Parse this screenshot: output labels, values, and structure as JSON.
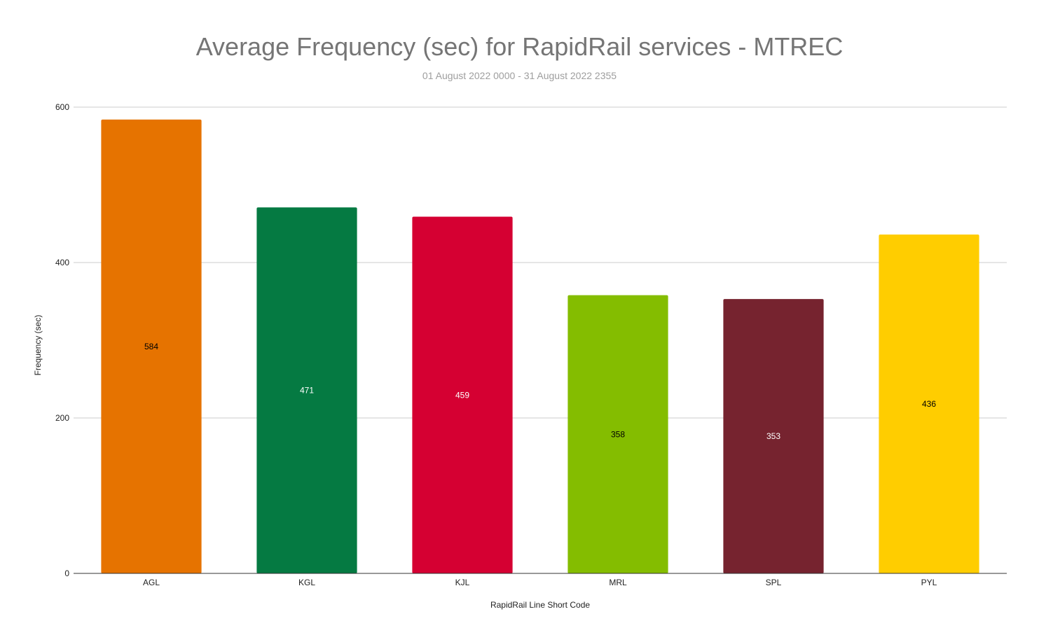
{
  "chart_data": {
    "type": "bar",
    "title": "Average Frequency (sec) for RapidRail services - MTREC",
    "subtitle": "01 August 2022 0000 - 31 August 2022 2355",
    "xlabel": "RapidRail Line Short Code",
    "ylabel": "Frequency (sec)",
    "ylim": [
      0,
      600
    ],
    "yticks": [
      0,
      200,
      400,
      600
    ],
    "grid": true,
    "categories": [
      "AGL",
      "KGL",
      "KJL",
      "MRL",
      "SPL",
      "PYL"
    ],
    "values": [
      584,
      471,
      459,
      358,
      353,
      436
    ],
    "colors": [
      "#e67300",
      "#057a42",
      "#d50032",
      "#84bd00",
      "#76232f",
      "#ffcd00"
    ],
    "label_colors": [
      "#000000",
      "#ffffff",
      "#ffffff",
      "#000000",
      "#ffffff",
      "#000000"
    ]
  }
}
